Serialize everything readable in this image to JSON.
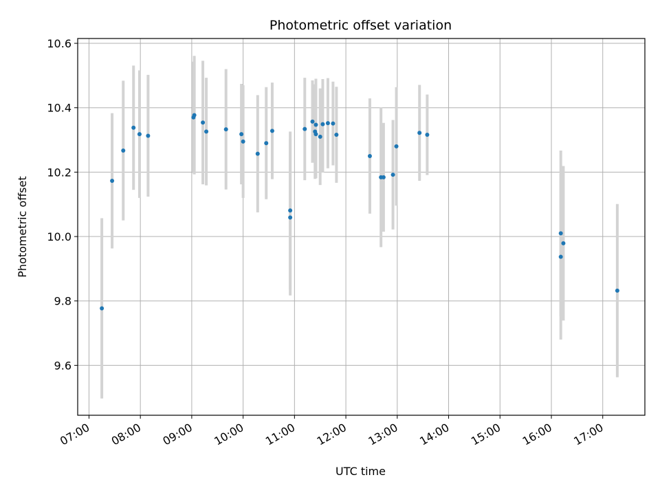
{
  "chart_data": {
    "type": "scatter",
    "title": "Photometric offset variation",
    "xlabel": "UTC time",
    "ylabel": "Photometric offset",
    "xlim_hours": [
      6.78,
      17.82
    ],
    "ylim": [
      9.445,
      10.615
    ],
    "x_ticks": [
      {
        "label": "07:00",
        "hour": 7
      },
      {
        "label": "08:00",
        "hour": 8
      },
      {
        "label": "09:00",
        "hour": 9
      },
      {
        "label": "10:00",
        "hour": 10
      },
      {
        "label": "11:00",
        "hour": 11
      },
      {
        "label": "12:00",
        "hour": 12
      },
      {
        "label": "13:00",
        "hour": 13
      },
      {
        "label": "14:00",
        "hour": 14
      },
      {
        "label": "15:00",
        "hour": 15
      },
      {
        "label": "16:00",
        "hour": 16
      },
      {
        "label": "17:00",
        "hour": 17
      }
    ],
    "y_ticks": [
      9.6,
      9.8,
      10.0,
      10.2,
      10.4,
      10.6
    ],
    "y_tick_labels": [
      "9.6",
      "9.8",
      "10.0",
      "10.2",
      "10.4",
      "10.6"
    ],
    "grid": true,
    "point_color": "#1f77b4",
    "errorbar_color": "#d3d3d3",
    "points": [
      {
        "time": "07:15",
        "y": 9.777,
        "lo": 9.497,
        "hi": 10.057
      },
      {
        "time": "07:27",
        "y": 10.173,
        "lo": 9.963,
        "hi": 10.383
      },
      {
        "time": "07:40",
        "y": 10.267,
        "lo": 10.05,
        "hi": 10.484
      },
      {
        "time": "07:52",
        "y": 10.338,
        "lo": 10.145,
        "hi": 10.531
      },
      {
        "time": "07:59",
        "y": 10.318,
        "lo": 10.12,
        "hi": 10.516
      },
      {
        "time": "08:09",
        "y": 10.313,
        "lo": 10.124,
        "hi": 10.502
      },
      {
        "time": "09:02",
        "y": 10.37,
        "lo": 10.197,
        "hi": 10.543
      },
      {
        "time": "09:03",
        "y": 10.377,
        "lo": 10.193,
        "hi": 10.561
      },
      {
        "time": "09:13",
        "y": 10.354,
        "lo": 10.162,
        "hi": 10.546
      },
      {
        "time": "09:17",
        "y": 10.326,
        "lo": 10.159,
        "hi": 10.493
      },
      {
        "time": "09:40",
        "y": 10.333,
        "lo": 10.146,
        "hi": 10.52
      },
      {
        "time": "09:58",
        "y": 10.318,
        "lo": 10.162,
        "hi": 10.474
      },
      {
        "time": "10:00",
        "y": 10.295,
        "lo": 10.12,
        "hi": 10.47
      },
      {
        "time": "10:17",
        "y": 10.257,
        "lo": 10.075,
        "hi": 10.439
      },
      {
        "time": "10:27",
        "y": 10.29,
        "lo": 10.116,
        "hi": 10.464
      },
      {
        "time": "10:34",
        "y": 10.328,
        "lo": 10.178,
        "hi": 10.478
      },
      {
        "time": "10:55",
        "y": 10.081,
        "lo": 9.836,
        "hi": 10.326
      },
      {
        "time": "10:55",
        "y": 10.059,
        "lo": 9.817,
        "hi": 10.301
      },
      {
        "time": "11:12",
        "y": 10.334,
        "lo": 10.175,
        "hi": 10.493
      },
      {
        "time": "11:21",
        "y": 10.357,
        "lo": 10.229,
        "hi": 10.485
      },
      {
        "time": "11:24",
        "y": 10.326,
        "lo": 10.179,
        "hi": 10.473
      },
      {
        "time": "11:25",
        "y": 10.318,
        "lo": 10.181,
        "hi": 10.455
      },
      {
        "time": "11:25",
        "y": 10.347,
        "lo": 10.204,
        "hi": 10.49
      },
      {
        "time": "11:30",
        "y": 10.31,
        "lo": 10.16,
        "hi": 10.46
      },
      {
        "time": "11:33",
        "y": 10.349,
        "lo": 10.199,
        "hi": 10.489
      },
      {
        "time": "11:39",
        "y": 10.352,
        "lo": 10.212,
        "hi": 10.492
      },
      {
        "time": "11:45",
        "y": 10.351,
        "lo": 10.221,
        "hi": 10.481
      },
      {
        "time": "11:49",
        "y": 10.316,
        "lo": 10.167,
        "hi": 10.465
      },
      {
        "time": "12:28",
        "y": 10.25,
        "lo": 10.071,
        "hi": 10.429
      },
      {
        "time": "12:41",
        "y": 10.184,
        "lo": 9.967,
        "hi": 10.401
      },
      {
        "time": "12:44",
        "y": 10.184,
        "lo": 10.015,
        "hi": 10.353
      },
      {
        "time": "12:55",
        "y": 10.192,
        "lo": 10.022,
        "hi": 10.362
      },
      {
        "time": "12:59",
        "y": 10.28,
        "lo": 10.096,
        "hi": 10.464
      },
      {
        "time": "13:26",
        "y": 10.322,
        "lo": 10.173,
        "hi": 10.471
      },
      {
        "time": "13:35",
        "y": 10.316,
        "lo": 10.191,
        "hi": 10.441
      },
      {
        "time": "16:11",
        "y": 10.01,
        "lo": 9.753,
        "hi": 10.267
      },
      {
        "time": "16:11",
        "y": 9.937,
        "lo": 9.68,
        "hi": 10.194
      },
      {
        "time": "16:14",
        "y": 9.979,
        "lo": 9.739,
        "hi": 10.219
      },
      {
        "time": "17:17",
        "y": 9.832,
        "lo": 9.563,
        "hi": 10.101
      }
    ]
  }
}
